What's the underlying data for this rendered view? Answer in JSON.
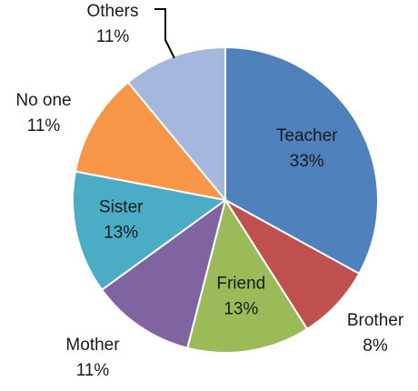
{
  "chart_data": {
    "type": "pie",
    "title": "",
    "slices": [
      {
        "label": "Teacher",
        "value": 33,
        "value_label": "33%",
        "color": "#4f81bd"
      },
      {
        "label": "Brother",
        "value": 8,
        "value_label": "8%",
        "color": "#c0504d"
      },
      {
        "label": "Friend",
        "value": 13,
        "value_label": "13%",
        "color": "#9bbb59"
      },
      {
        "label": "Mother",
        "value": 11,
        "value_label": "11%",
        "color": "#8064a2"
      },
      {
        "label": "Sister",
        "value": 13,
        "value_label": "13%",
        "color": "#4bacc6"
      },
      {
        "label": "No one",
        "value": 11,
        "value_label": "11%",
        "color": "#f79646"
      },
      {
        "label": "Others",
        "value": 11,
        "value_label": "11%",
        "color": "#a5b7dc"
      }
    ],
    "start_angle": "12 o'clock",
    "direction": "clockwise",
    "legend": "none"
  }
}
